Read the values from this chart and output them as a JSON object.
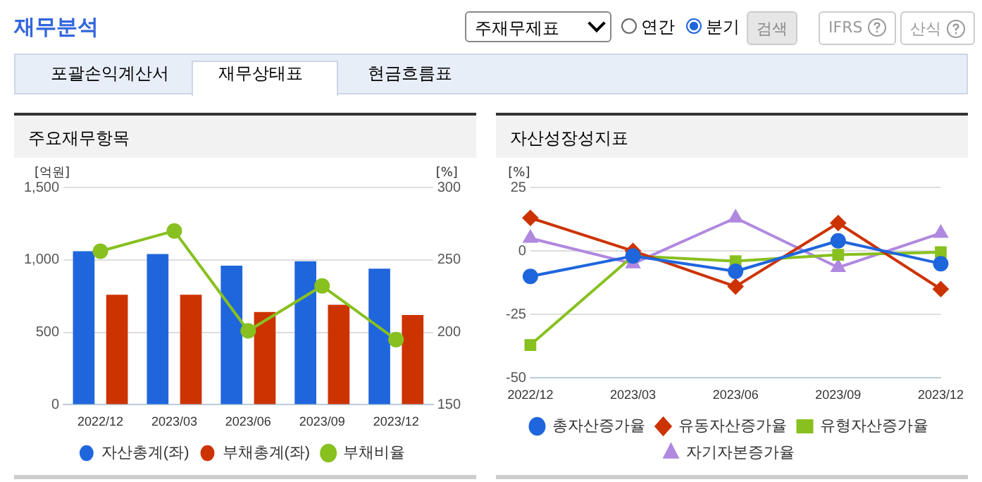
{
  "chart_data": [
    {
      "type": "other",
      "title": "재무분석",
      "annotations": [
        "주재무제표",
        "연간",
        "분기",
        "검색",
        "IFRS",
        "산식",
        "포괄손익계산서",
        "재무상태표",
        "현금흐름표"
      ]
    },
    {
      "type": "bar",
      "title": "주요재무항목",
      "ylabel": "[억원]",
      "y2label": "[%]",
      "categories": [
        "2022/12",
        "2023/03",
        "2023/06",
        "2023/09",
        "2023/12"
      ],
      "series": [
        {
          "name": "자산총계(좌)",
          "color": "#1f66dd",
          "values": [
            1060,
            1040,
            960,
            990,
            940
          ]
        },
        {
          "name": "부채총계(좌)",
          "color": "#cc3300",
          "values": [
            760,
            760,
            640,
            690,
            620
          ]
        },
        {
          "name": "부채비율",
          "type": "line",
          "axis": "y2",
          "marker": "circle",
          "color": "#88c020",
          "values": [
            256,
            270,
            201,
            232,
            195
          ]
        }
      ],
      "ylim": [
        0,
        1500
      ],
      "yticks": [
        0,
        {
          "value": 500,
          "label": "500"
        },
        {
          "value": 1000,
          "label": "1,000"
        },
        {
          "value": 1500,
          "label": "1,500"
        }
      ],
      "y2lim": [
        150,
        300
      ],
      "y2ticks": [
        150,
        200,
        250,
        300
      ],
      "grid": "y",
      "legend": "bottom"
    },
    {
      "type": "line",
      "title": "자산성장성지표",
      "ylabel": "[%]",
      "categories": [
        "2022/12",
        "2023/03",
        "2023/06",
        "2023/09",
        "2023/12"
      ],
      "series": [
        {
          "name": "총자산증가율",
          "color": "#1f66dd",
          "marker": "circle",
          "values": [
            -10,
            -2,
            -8,
            4,
            -5
          ]
        },
        {
          "name": "유동자산증가율",
          "color": "#cc3300",
          "marker": "diamond",
          "values": [
            13,
            0,
            -14,
            11,
            -15
          ]
        },
        {
          "name": "유형자산증가율",
          "color": "#88c020",
          "marker": "square",
          "values": [
            -37,
            -2,
            -4,
            -1.5,
            -0.5
          ]
        },
        {
          "name": "자기자본증가율",
          "color": "#b088e0",
          "marker": "triangle",
          "values": [
            5,
            -5,
            13,
            -6.5,
            7
          ]
        }
      ],
      "ylim": [
        -50,
        25
      ],
      "yticks": [
        -50,
        -25,
        0,
        25
      ],
      "grid": "y",
      "legend": "bottom"
    }
  ]
}
